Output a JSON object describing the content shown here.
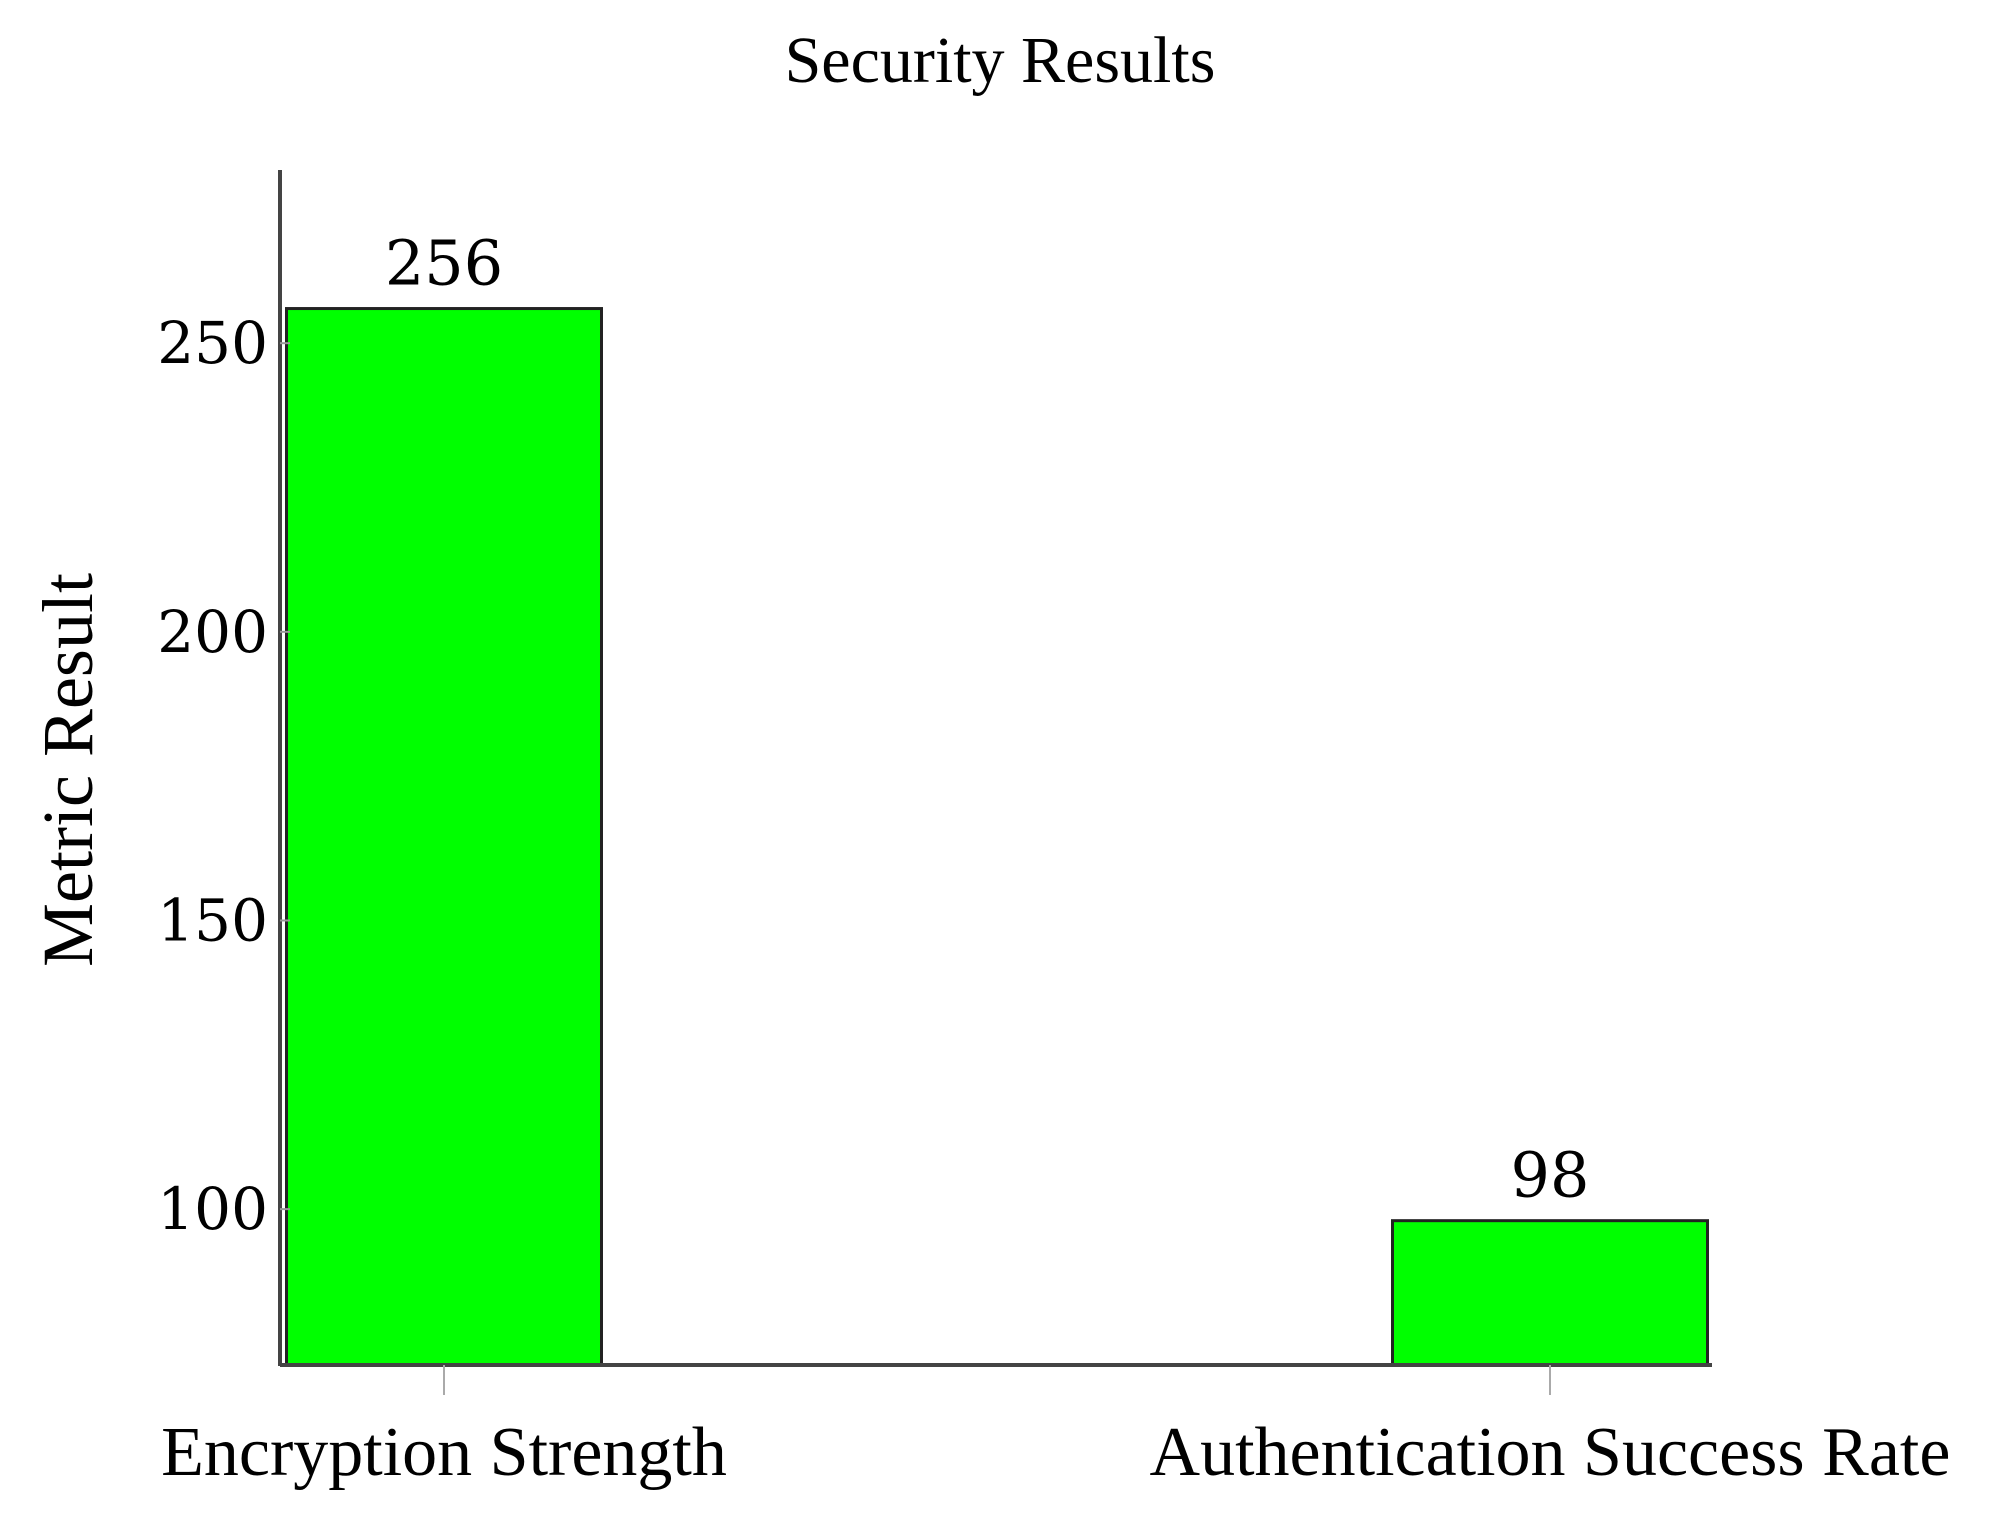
{
  "chart_data": {
    "type": "bar",
    "title": "Security Results",
    "xlabel": "",
    "ylabel": "Metric Result",
    "categories": [
      "Encryption Strength",
      "Authentication Success Rate"
    ],
    "values": [
      256,
      98
    ],
    "data_labels": [
      "256",
      "98"
    ],
    "ylim": [
      73,
      280
    ],
    "yticks": [
      100,
      150,
      200,
      250
    ],
    "ytick_labels": [
      "100",
      "150",
      "200",
      "250"
    ],
    "bar_color": "#00ff00",
    "bar_edge_color": "#222222",
    "grid": false,
    "legend": "none"
  }
}
